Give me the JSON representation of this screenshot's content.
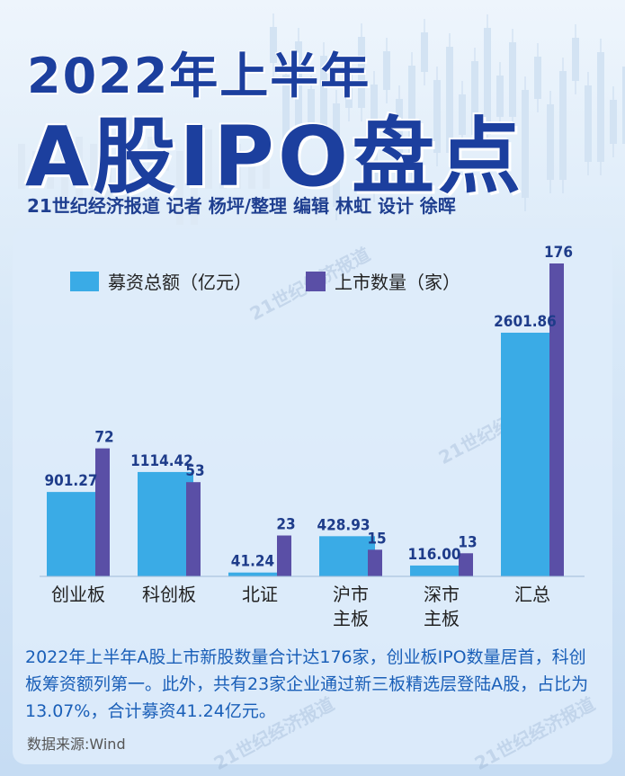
{
  "header": {
    "year_title": "2022年上半年",
    "main_title": "A股IPO盘点",
    "byline": "21世纪经济报道 记者 杨坪/整理 编辑 林虹 设计 徐晖"
  },
  "watermark": "21世纪经济报道",
  "legend": {
    "amount": "募资总额（亿元）",
    "count": "上市数量（家）"
  },
  "chart_data": {
    "type": "bar",
    "categories": [
      "创业板",
      "科创板",
      "北证",
      "沪市主板",
      "深市主板",
      "汇总"
    ],
    "category_lines": [
      [
        "创业板"
      ],
      [
        "科创板"
      ],
      [
        "北证"
      ],
      [
        "沪市",
        "主板"
      ],
      [
        "深市",
        "主板"
      ],
      [
        "汇总"
      ]
    ],
    "series": [
      {
        "name": "募资总额（亿元）",
        "values": [
          901.27,
          1114.42,
          41.24,
          428.93,
          116.0,
          2601.86
        ],
        "labels": [
          "901.27",
          "1114.42",
          "41.24",
          "428.93",
          "116.00",
          "2601.86"
        ],
        "color": "#3aabe6"
      },
      {
        "name": "上市数量（家）",
        "values": [
          72,
          53,
          23,
          15,
          13,
          176
        ],
        "labels": [
          "72",
          "53",
          "23",
          "15",
          "13",
          "176"
        ],
        "color": "#5a4fa6"
      }
    ],
    "legend_position": "top-left",
    "grid": false
  },
  "summary": "2022年上半年A股上市新股数量合计达176家，创业板IPO数量居首，科创板筹资额列第一。此外，共有23家企业通过新三板精选层登陆A股，占比为13.07%，合计募资41.24亿元。",
  "source": "数据来源:Wind",
  "colors": {
    "title": "#1c3f9e",
    "amount_bar": "#3aabe6",
    "count_bar": "#5a4fa6",
    "summary_text": "#1a5fb8",
    "bar_label": "#1e3c8a"
  }
}
